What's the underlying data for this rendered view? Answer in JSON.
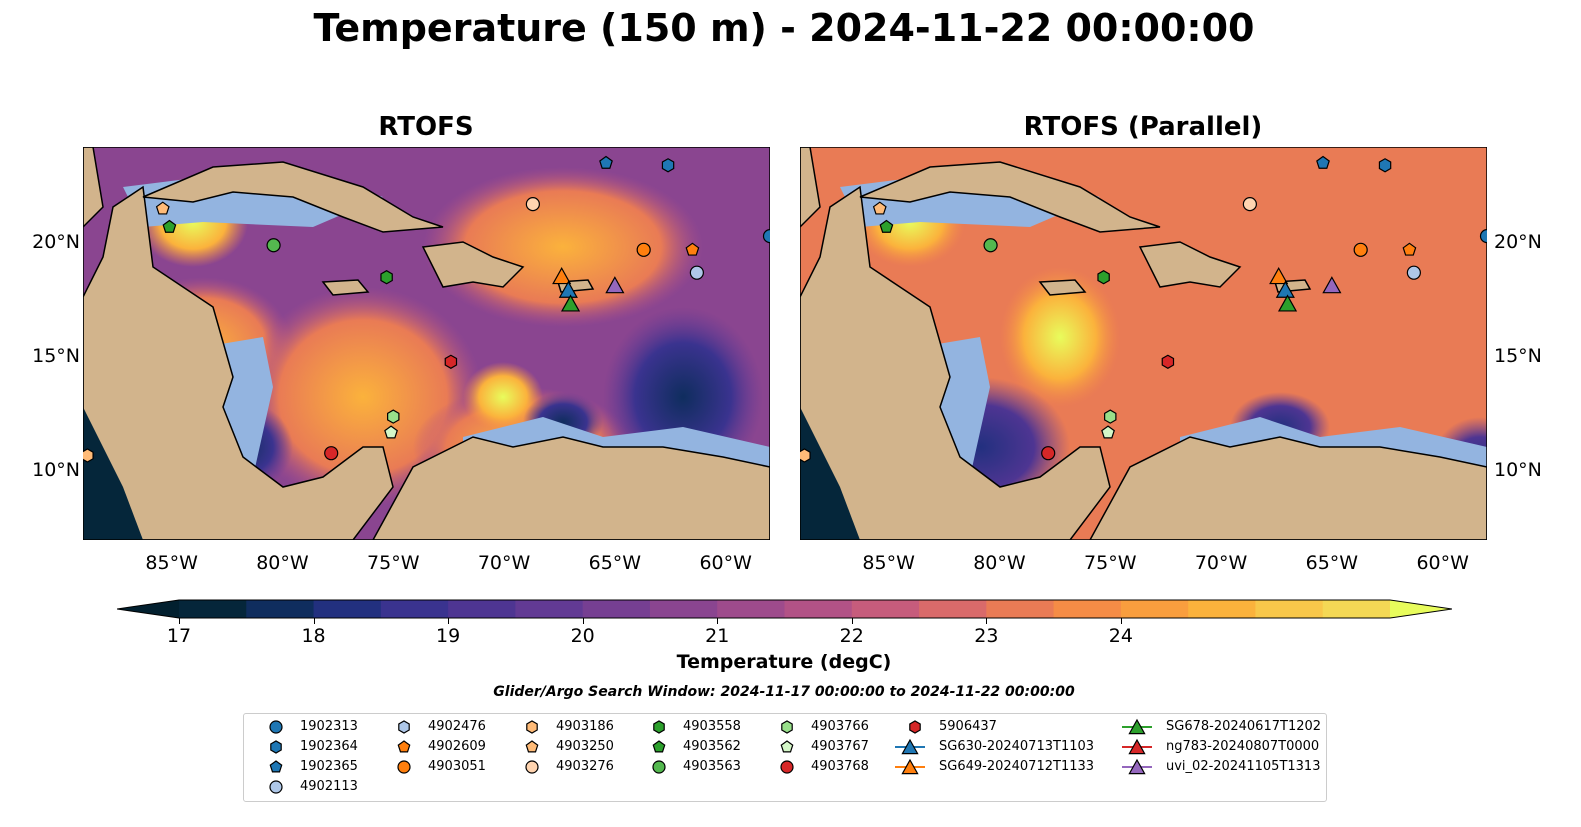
{
  "suptitle": "Temperature (150 m) - 2024-11-22 00:00:00",
  "panels": [
    {
      "title": "RTOFS"
    },
    {
      "title": "RTOFS (Parallel)"
    }
  ],
  "axes": {
    "lon_ticks": [
      "85°W",
      "80°W",
      "75°W",
      "70°W",
      "65°W",
      "60°W"
    ],
    "lat_ticks": [
      "20°N",
      "15°N",
      "10°N"
    ]
  },
  "colorbar": {
    "label": "Temperature (degC)",
    "ticks": [
      "17",
      "18",
      "19",
      "20",
      "21",
      "22",
      "23",
      "24"
    ],
    "colors": [
      "#05263a",
      "#0f2d5e",
      "#22307f",
      "#3a338f",
      "#4e3592",
      "#623a94",
      "#763f92",
      "#8a4590",
      "#9e4b8c",
      "#b25286",
      "#c65c7c",
      "#d96a6a",
      "#e97b55",
      "#f58c46",
      "#f99e3e",
      "#fbb23c",
      "#f8c74a",
      "#f4d855"
    ],
    "extend_low": "#02202f",
    "extend_high": "#e8fc5c"
  },
  "search_window": "Glider/Argo Search Window: 2024-11-17 00:00:00 to 2024-11-22 00:00:00",
  "legend": [
    {
      "label": "1902313",
      "marker": "circle",
      "color": "#1f77b4"
    },
    {
      "label": "1902364",
      "marker": "hexagon",
      "color": "#1f77b4"
    },
    {
      "label": "1902365",
      "marker": "pentagon",
      "color": "#1f77b4"
    },
    {
      "label": "4902113",
      "marker": "circle",
      "color": "#aec7e8"
    },
    {
      "label": "4902476",
      "marker": "hexagon",
      "color": "#aec7e8"
    },
    {
      "label": "4902609",
      "marker": "pentagon",
      "color": "#ff7f0e"
    },
    {
      "label": "4903051",
      "marker": "circle",
      "color": "#ff7f0e"
    },
    {
      "label": "4903186",
      "marker": "hexagon",
      "color": "#ffbb78"
    },
    {
      "label": "4903250",
      "marker": "pentagon",
      "color": "#ffbb78"
    },
    {
      "label": "4903276",
      "marker": "circle",
      "color": "#ffd4b0"
    },
    {
      "label": "4903558",
      "marker": "hexagon",
      "color": "#2ca02c"
    },
    {
      "label": "4903562",
      "marker": "pentagon",
      "color": "#2ca02c"
    },
    {
      "label": "4903563",
      "marker": "circle",
      "color": "#54b84f"
    },
    {
      "label": "4903766",
      "marker": "hexagon",
      "color": "#98df8a"
    },
    {
      "label": "4903767",
      "marker": "pentagon",
      "color": "#d4f7c8"
    },
    {
      "label": "4903768",
      "marker": "circle",
      "color": "#d62728"
    },
    {
      "label": "5906437",
      "marker": "hexagon",
      "color": "#d62728"
    },
    {
      "label": "SG630-20240713T1103",
      "marker": "triangle-line",
      "color": "#1f77b4"
    },
    {
      "label": "SG649-20240712T1133",
      "marker": "triangle-line",
      "color": "#ff7f0e"
    },
    {
      "label": "SG678-20240617T1202",
      "marker": "triangle-line",
      "color": "#2ca02c"
    },
    {
      "label": "ng783-20240807T0000",
      "marker": "triangle-line",
      "color": "#d62728"
    },
    {
      "label": "uvi_02-20241105T1313",
      "marker": "triangle-line",
      "color": "#9467bd"
    }
  ],
  "floats": [
    {
      "id": "1902313",
      "lon": -58.0,
      "lat": 20.3
    },
    {
      "id": "1902364",
      "lon": -62.6,
      "lat": 23.4
    },
    {
      "id": "1902365",
      "lon": -65.4,
      "lat": 23.5
    },
    {
      "id": "4902113",
      "lon": -61.3,
      "lat": 18.7
    },
    {
      "id": "4902609",
      "lon": -61.5,
      "lat": 19.7
    },
    {
      "id": "4903051",
      "lon": -63.7,
      "lat": 19.7
    },
    {
      "id": "4903186",
      "lon": -88.8,
      "lat": 10.7
    },
    {
      "id": "4903250",
      "lon": -85.4,
      "lat": 21.5
    },
    {
      "id": "4903276",
      "lon": -68.7,
      "lat": 21.7
    },
    {
      "id": "4903558",
      "lon": -75.3,
      "lat": 18.5
    },
    {
      "id": "4903562",
      "lon": -85.1,
      "lat": 20.7
    },
    {
      "id": "4903563",
      "lon": -80.4,
      "lat": 19.9
    },
    {
      "id": "4903766",
      "lon": -75.0,
      "lat": 12.4
    },
    {
      "id": "4903767",
      "lon": -75.1,
      "lat": 11.7
    },
    {
      "id": "4903768",
      "lon": -77.8,
      "lat": 10.8
    },
    {
      "id": "5906437",
      "lon": -72.4,
      "lat": 14.8
    }
  ],
  "gliders": [
    {
      "id": "SG649-20240712T1133",
      "lon": -67.4,
      "lat": 18.5
    },
    {
      "id": "SG630-20240713T1103",
      "lon": -67.1,
      "lat": 17.9
    },
    {
      "id": "SG678-20240617T1202",
      "lon": -67.0,
      "lat": 17.3
    },
    {
      "id": "uvi_02-20241105T1313",
      "lon": -65.0,
      "lat": 18.1
    }
  ]
}
